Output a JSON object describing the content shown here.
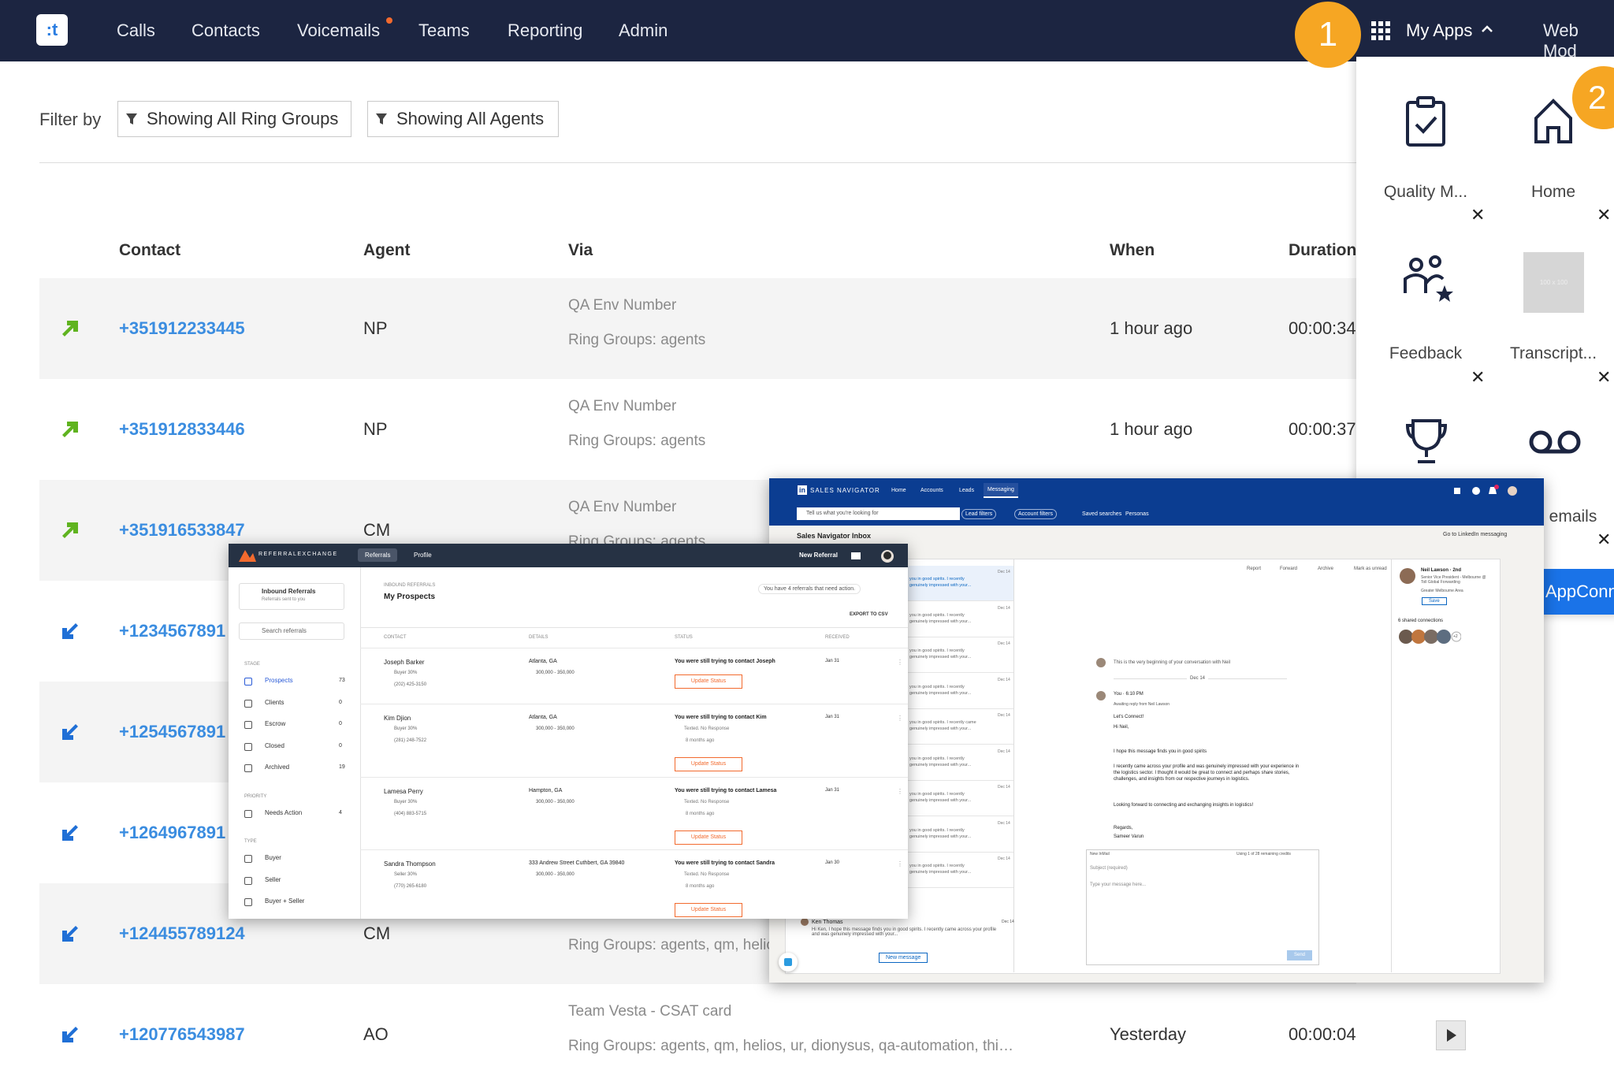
{
  "nav": {
    "logo": ":t",
    "items": [
      "Calls",
      "Contacts",
      "Voicemails",
      "Teams",
      "Reporting",
      "Admin"
    ],
    "badge": "1",
    "my_apps": "My Apps",
    "web_mode": "Web Mod"
  },
  "filter": {
    "label": "Filter by",
    "ring_groups": "Showing All Ring Groups",
    "agents": "Showing All Agents"
  },
  "table": {
    "headers": [
      "Contact",
      "Agent",
      "Via",
      "When",
      "Duration"
    ],
    "rows": [
      {
        "direction": "outgoing",
        "number": "+351912233445",
        "agent": "NP",
        "via": [
          "QA Env Number",
          "Ring Groups: agents"
        ],
        "when": "1 hour ago",
        "duration": "00:00:34"
      },
      {
        "direction": "outgoing",
        "number": "+351912833446",
        "agent": "NP",
        "via": [
          "QA Env Number",
          "Ring Groups: agents"
        ],
        "when": "1 hour ago",
        "duration": "00:00:37"
      },
      {
        "direction": "outgoing",
        "number": "+351916533847",
        "agent": "CM",
        "via": [
          "QA Env Number",
          "Ring Groups: agents"
        ],
        "when": null,
        "duration": null
      },
      {
        "direction": "incoming",
        "number": "+1234567891",
        "agent": null,
        "via": [
          null,
          null
        ],
        "when": null,
        "duration": null
      },
      {
        "direction": "incoming",
        "number": "+1254567891",
        "agent": null,
        "via": [
          null,
          null
        ],
        "when": null,
        "duration": null
      },
      {
        "direction": "incoming",
        "number": "+1264967891",
        "agent": null,
        "via": [
          null,
          null
        ],
        "when": null,
        "duration": null
      },
      {
        "direction": "incoming",
        "number": "+124455789124",
        "agent": "CM",
        "via": [
          null,
          "Ring Groups: agents, qm, helic"
        ],
        "when": null,
        "duration": null
      },
      {
        "direction": "incoming",
        "number": "+120776543987",
        "agent": "AO",
        "via": [
          "Team Vesta - CSAT card",
          "Ring Groups: agents, qm, helios, ur, dionysus, qa-automation, thi…"
        ],
        "when": "Yesterday",
        "duration": "00:00:04"
      }
    ]
  },
  "apps_panel": {
    "badge": "2",
    "apps": [
      "Quality M...",
      "Home",
      "Feedback",
      "Transcript...",
      "emails"
    ],
    "placeholder": "100 x 100",
    "button": "AppConn"
  },
  "referral_exchange": {
    "logo": "REFERRALEXCHANGE",
    "tabs": [
      "Referrals",
      "Profile"
    ],
    "new_referral": "New Referral",
    "inbox_title": "Inbound Referrals",
    "inbox_sub": "Referrals sent to you",
    "search": "Search referrals",
    "sidebar": [
      {
        "heading": "STAGE"
      },
      {
        "label": "Prospects",
        "count": "73"
      },
      {
        "label": "Clients",
        "count": "0"
      },
      {
        "label": "Escrow",
        "count": "0"
      },
      {
        "label": "Closed",
        "count": "0"
      },
      {
        "label": "Archived",
        "count": "19"
      },
      {
        "heading": "PRIORITY"
      },
      {
        "label": "Needs Action",
        "count": "4"
      },
      {
        "heading": "TYPE"
      },
      {
        "label": "Buyer"
      },
      {
        "label": "Seller"
      },
      {
        "label": "Buyer + Seller"
      }
    ],
    "section": "INBOUND REFERRALS",
    "title": "My Prospects",
    "notice": "You have 4 referrals that need action.",
    "export": "EXPORT TO CSV",
    "columns": [
      "CONTACT",
      "DETAILS",
      "STATUS",
      "RECEIVED"
    ],
    "rows": [
      {
        "name": "Joseph Barker",
        "role": "Buyer 30%",
        "phone": "(202) 425-3150",
        "place": "Atlanta, GA",
        "price": "300,000 - 350,000",
        "status": "You were still trying to contact Joseph",
        "notes": [],
        "button": "Update Status",
        "received": "Jan 31"
      },
      {
        "name": "Kim Djion",
        "role": "Buyer 30%",
        "phone": "(281) 248-7522",
        "place": "Atlanta, GA",
        "price": "300,000 - 350,000",
        "status": "You were still trying to contact Kim",
        "notes": [
          "Texted. No Response",
          "8 months ago"
        ],
        "button": "Update Status",
        "received": "Jan 31"
      },
      {
        "name": "Lamesa Perry",
        "role": "Buyer 30%",
        "phone": "(404) 883-5715",
        "place": "Hampton, GA",
        "price": "300,000 - 350,000",
        "status": "You were still trying to contact Lamesa",
        "notes": [
          "Texted. No Response",
          "8 months ago"
        ],
        "button": "Update Status",
        "received": "Jan 31"
      },
      {
        "name": "Sandra Thompson",
        "role": "Seller 30%",
        "phone": "(770) 265-6180",
        "place": "333 Andrew Street Cuthbert, GA 39840",
        "price": "300,000 - 350,000",
        "status": "You were still trying to contact Sandra",
        "notes": [
          "Texted. No Response",
          "8 months ago"
        ],
        "button": "Update Status",
        "received": "Jan 30"
      }
    ]
  },
  "sales_navigator": {
    "brand": "SALES NAVIGATOR",
    "tabs": [
      "Home",
      "Accounts",
      "Leads",
      "Messaging"
    ],
    "search": "Tell us what you're looking for",
    "filters": [
      "Lead filters",
      "Account filters"
    ],
    "links": [
      "Saved searches",
      "Personas"
    ],
    "inbox": "Sales Navigator Inbox",
    "goto": "Go to LinkedIn messaging",
    "list_items": [
      {
        "line1": "you in good spirits. I recently",
        "line2": "genuinely impressed with your...",
        "date": "Dec 14"
      },
      {
        "line1": "you in good spirits. I recently",
        "line2": "genuinely impressed with your...",
        "date": "Dec 14"
      },
      {
        "line1": "you in good spirits. I recently",
        "line2": "genuinely impressed with your...",
        "date": "Dec 14"
      },
      {
        "line1": "you in good spirits. I recently",
        "line2": "genuinely impressed with your...",
        "date": "Dec 14"
      },
      {
        "line1": "you in good spirits. I recently came",
        "line2": "genuinely impressed with your...",
        "date": "Dec 14"
      },
      {
        "line1": "you in good spirits. I recently",
        "line2": "genuinely impressed with your...",
        "date": "Dec 14"
      },
      {
        "line1": "you in good spirits. I recently",
        "line2": "genuinely impressed with your...",
        "date": "Dec 14"
      },
      {
        "line1": "you in good spirits. I recently",
        "line2": "genuinely impressed with your...",
        "date": "Dec 14"
      },
      {
        "line1": "you in good spirits. I recently",
        "line2": "genuinely impressed with your...",
        "date": "Dec 14"
      }
    ],
    "last_contact": "Ken Thomas",
    "last_snippet": "Hi Ken, I hope this message finds you in good spirits. I recently came across your profile and was genuinely impressed with your...",
    "last_date": "Dec 14",
    "new_message": "New message",
    "actions": [
      "Report",
      "Forward",
      "Archive",
      "Mark as unread"
    ],
    "conversation_start": "This is the very beginning of your conversation with Neil",
    "date_divider": "Dec 14",
    "sender": "You · 6:10 PM",
    "awaiting": "Awaiting reply from Neil Lawson",
    "message": [
      "Let's Connect!",
      "Hi Neil,",
      "I hope this message finds you in good spirits",
      "I recently came across your profile and was genuinely impressed with your experience in the logistics sector. I thought it would be great to connect and perhaps share stories, challenges, and insights from our respective journeys in logistics.",
      "Looking forward to connecting and exchanging insights in logistics!",
      "Regards,",
      "Sameer Varun"
    ],
    "compose": {
      "title": "New InMail",
      "credits": "Using 1 of 28 remaining credits",
      "subject": "Subject (required)",
      "body": "Type your message here...",
      "send": "Send"
    },
    "profile": {
      "name": "Neil Lawson · 2nd",
      "headline": "Senior Vice President - Melbourne @ Toll Global Forwarding",
      "location": "Greater Melbourne Area",
      "save": "Save",
      "shared": "6 shared connections",
      "more": "+2"
    }
  }
}
